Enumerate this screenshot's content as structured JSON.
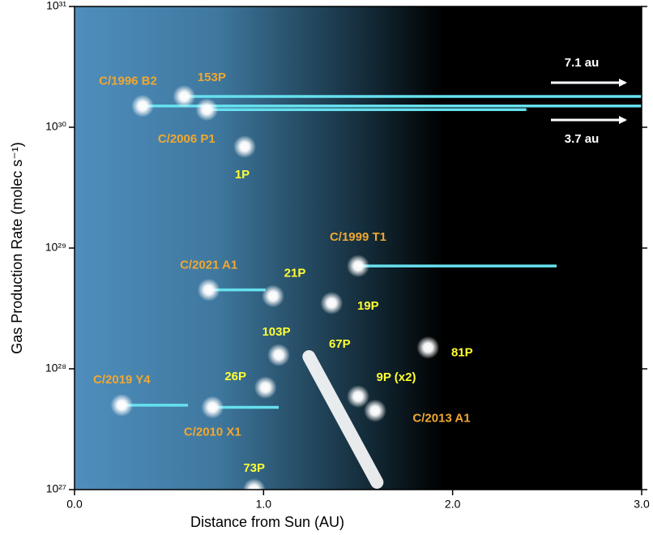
{
  "chart_data": {
    "type": "scatter",
    "x_label": "Distance from Sun (AU)",
    "y_label": "Gas Production Rate (molec s⁻¹)",
    "log_y": true,
    "xlim": [
      0,
      3.0
    ],
    "ylim": [
      1e+27,
      1e+31
    ],
    "xticks": [
      {
        "value": 0,
        "label": "0.0"
      },
      {
        "value": 1,
        "label": "1.0"
      },
      {
        "value": 2,
        "label": "2.0"
      },
      {
        "value": 3,
        "label": "3.0"
      }
    ],
    "yticks": [
      {
        "value": 1e+27,
        "label": "10²⁷"
      },
      {
        "value": 1e+28,
        "label": "10²⁸"
      },
      {
        "value": 1e+29,
        "label": "10²⁹"
      },
      {
        "value": 1e+30,
        "label": "10³⁰"
      },
      {
        "value": 1e+31,
        "label": "10³¹"
      }
    ],
    "range_color": "#66e0ee",
    "points": [
      {
        "name": "C/1996 B2",
        "color": "#f0a830",
        "x": 0.36,
        "y": 1.5e+30,
        "x_end": 3.0
      },
      {
        "name": "153P",
        "color": "#f0a830",
        "x": 0.58,
        "y": 1.8e+30,
        "x_end": 3.0
      },
      {
        "name": "C/2006 P1",
        "color": "#f0a830",
        "x": 0.7,
        "y": 1.4e+30,
        "x_end": 2.39
      },
      {
        "name": "1P",
        "color": "#ffff33",
        "x": 0.9,
        "y": 6.9e+29
      },
      {
        "name": "C/1999 T1",
        "color": "#f0a830",
        "x": 1.5,
        "y": 7.1e+28,
        "x_end": 2.55
      },
      {
        "name": "C/2021 A1",
        "color": "#f0a830",
        "x": 0.71,
        "y": 4.5e+28,
        "x_end": 1.01
      },
      {
        "name": "21P",
        "color": "#ffff33",
        "x": 1.05,
        "y": 4e+28
      },
      {
        "name": "19P",
        "color": "#ffff33",
        "x": 1.36,
        "y": 3.5e+28
      },
      {
        "name": "81P",
        "color": "#ffff33",
        "x": 1.87,
        "y": 1.5e+28
      },
      {
        "name": "103P",
        "color": "#ffff33",
        "x": 1.08,
        "y": 1.3e+28
      },
      {
        "name": "26P",
        "color": "#ffff33",
        "x": 1.01,
        "y": 7e+27
      },
      {
        "name": "9P (x2)",
        "color": "#ffff33",
        "x": 1.5,
        "y": 5.9e+27
      },
      {
        "name": "C/2013 A1",
        "color": "#f0a830",
        "x": 1.59,
        "y": 4.5e+27
      },
      {
        "name": "C/2019 Y4",
        "color": "#f0a830",
        "x": 0.25,
        "y": 5e+27,
        "x_end": 0.6
      },
      {
        "name": "C/2010 X1",
        "color": "#f0a830",
        "x": 0.73,
        "y": 4.8e+27,
        "x_end": 1.08
      },
      {
        "name": "73P",
        "color": "#ffff33",
        "x": 0.95,
        "y": 1e+27
      },
      {
        "name": "67P",
        "color": "#ffff33",
        "x": 1.24,
        "y": 1.26e+28,
        "x_end": 1.6,
        "y_end": 1.15e+27
      }
    ],
    "annotations": [
      "7.1 au",
      "3.7 au"
    ]
  }
}
